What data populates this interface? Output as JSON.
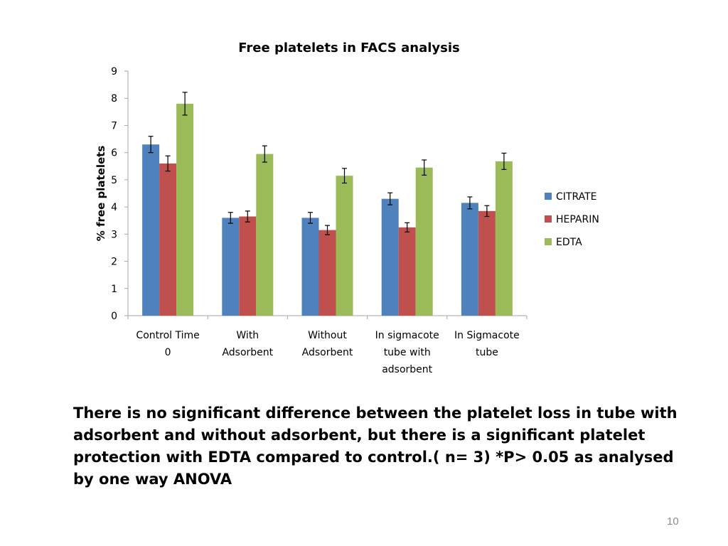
{
  "colors": {
    "citrate": "#4f81bd",
    "heparin": "#c0504d",
    "edta": "#9bbb59",
    "axis": "#a6a6a6"
  },
  "chart_data": {
    "type": "bar",
    "title": "Free platelets in FACS analysis",
    "ylabel": "% free platelets",
    "xlabel": "",
    "ylim": [
      0,
      9
    ],
    "yticks": [
      0,
      1,
      2,
      3,
      4,
      5,
      6,
      7,
      8,
      9
    ],
    "grid": false,
    "legend_position": "right",
    "categories": [
      [
        "Control Time",
        "0"
      ],
      [
        "With",
        "Adsorbent"
      ],
      [
        "Without",
        "Adsorbent"
      ],
      [
        "In sigmacote",
        "tube with",
        "adsorbent"
      ],
      [
        "In Sigmacote",
        "tube"
      ]
    ],
    "series": [
      {
        "name": "CITRATE",
        "color": "#4f81bd",
        "values": [
          6.3,
          3.6,
          3.6,
          4.3,
          4.15
        ],
        "errors": [
          0.3,
          0.2,
          0.2,
          0.22,
          0.22
        ]
      },
      {
        "name": "HEPARIN",
        "color": "#c0504d",
        "values": [
          5.6,
          3.65,
          3.15,
          3.25,
          3.85
        ],
        "errors": [
          0.28,
          0.2,
          0.17,
          0.17,
          0.2
        ]
      },
      {
        "name": "EDTA",
        "color": "#9bbb59",
        "values": [
          7.8,
          5.95,
          5.15,
          5.45,
          5.68
        ],
        "errors": [
          0.42,
          0.3,
          0.27,
          0.28,
          0.3
        ]
      }
    ]
  },
  "caption": "There is no significant difference between the platelet loss in tube with adsorbent and without adsorbent, but there is a significant platelet protection with EDTA compared to control.( n= 3) *P> 0.05 as analysed by one way ANOVA",
  "page_number": "10"
}
